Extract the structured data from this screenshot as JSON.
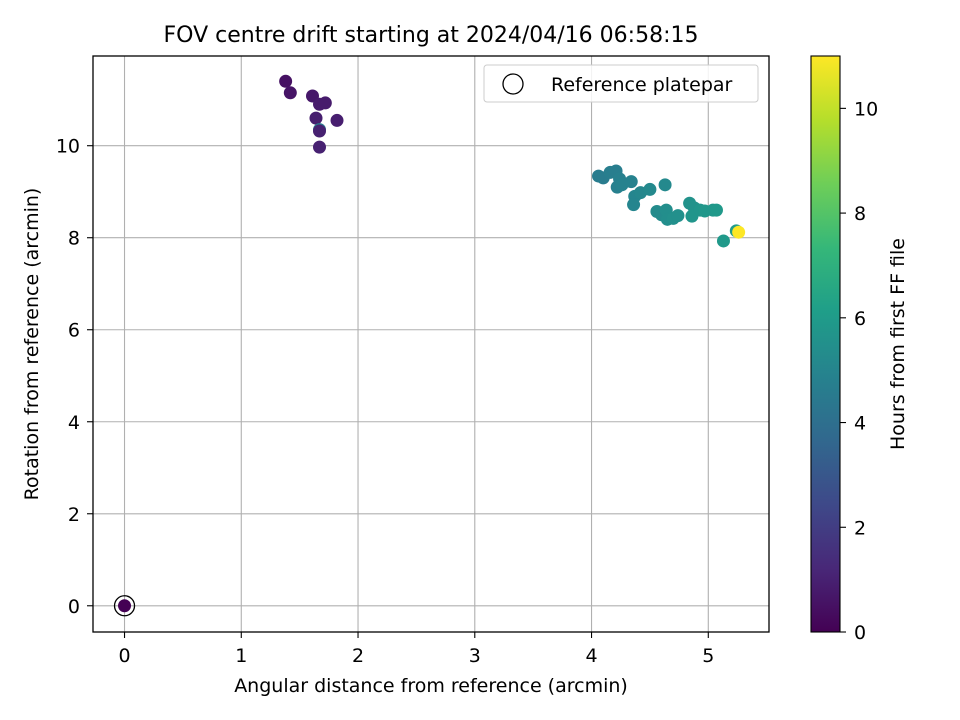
{
  "chart_data": {
    "type": "scatter",
    "title": "FOV centre drift starting at 2024/04/16 06:58:15",
    "xlabel": "Angular distance from reference (arcmin)",
    "ylabel": "Rotation from reference (arcmin)",
    "xlim": [
      -0.27,
      5.52
    ],
    "ylim": [
      -0.57,
      11.95
    ],
    "xticks": [
      0,
      1,
      2,
      3,
      4,
      5
    ],
    "yticks": [
      0,
      2,
      4,
      6,
      8,
      10
    ],
    "grid": true,
    "legend": {
      "position": "top-right",
      "entries": [
        "Reference platepar"
      ]
    },
    "colorbar": {
      "label": "Hours from first FF file",
      "range": [
        0,
        11
      ],
      "ticks": [
        0,
        2,
        4,
        6,
        8,
        10
      ],
      "colormap": "viridis"
    },
    "reference_point": {
      "x": 0,
      "y": 0
    },
    "points": [
      {
        "x": 0,
        "y": 0,
        "c": 0
      },
      {
        "x": 1.38,
        "y": 11.4,
        "c": 0.5
      },
      {
        "x": 1.42,
        "y": 11.15,
        "c": 0.6
      },
      {
        "x": 1.61,
        "y": 11.08,
        "c": 0.7
      },
      {
        "x": 1.67,
        "y": 10.9,
        "c": 0.8
      },
      {
        "x": 1.72,
        "y": 10.93,
        "c": 0.8
      },
      {
        "x": 1.64,
        "y": 10.6,
        "c": 0.9
      },
      {
        "x": 1.82,
        "y": 10.55,
        "c": 0.9
      },
      {
        "x": 1.67,
        "y": 10.35,
        "c": 4.4
      },
      {
        "x": 1.67,
        "y": 10.32,
        "c": 1.0
      },
      {
        "x": 1.67,
        "y": 9.97,
        "c": 1.0
      },
      {
        "x": 4.06,
        "y": 9.34,
        "c": 4.6
      },
      {
        "x": 4.1,
        "y": 9.3,
        "c": 4.6
      },
      {
        "x": 4.16,
        "y": 9.42,
        "c": 4.7
      },
      {
        "x": 4.21,
        "y": 9.45,
        "c": 4.7
      },
      {
        "x": 4.24,
        "y": 9.28,
        "c": 4.8
      },
      {
        "x": 4.22,
        "y": 9.1,
        "c": 4.8
      },
      {
        "x": 4.26,
        "y": 9.15,
        "c": 4.9
      },
      {
        "x": 4.34,
        "y": 9.22,
        "c": 4.9
      },
      {
        "x": 4.37,
        "y": 8.9,
        "c": 5.0
      },
      {
        "x": 4.36,
        "y": 8.72,
        "c": 5.0
      },
      {
        "x": 4.42,
        "y": 8.98,
        "c": 5.1
      },
      {
        "x": 4.5,
        "y": 9.05,
        "c": 5.2
      },
      {
        "x": 4.63,
        "y": 9.15,
        "c": 5.2
      },
      {
        "x": 4.56,
        "y": 8.57,
        "c": 5.3
      },
      {
        "x": 4.6,
        "y": 8.5,
        "c": 5.3
      },
      {
        "x": 4.64,
        "y": 8.6,
        "c": 5.4
      },
      {
        "x": 4.65,
        "y": 8.4,
        "c": 5.4
      },
      {
        "x": 4.7,
        "y": 8.42,
        "c": 5.5
      },
      {
        "x": 4.74,
        "y": 8.48,
        "c": 5.5
      },
      {
        "x": 4.84,
        "y": 8.75,
        "c": 5.6
      },
      {
        "x": 4.88,
        "y": 8.65,
        "c": 5.6
      },
      {
        "x": 4.86,
        "y": 8.47,
        "c": 5.7
      },
      {
        "x": 4.93,
        "y": 8.6,
        "c": 5.7
      },
      {
        "x": 4.97,
        "y": 8.58,
        "c": 5.8
      },
      {
        "x": 5.04,
        "y": 8.6,
        "c": 5.8
      },
      {
        "x": 5.07,
        "y": 8.6,
        "c": 5.9
      },
      {
        "x": 5.13,
        "y": 7.93,
        "c": 5.9
      },
      {
        "x": 5.24,
        "y": 8.15,
        "c": 6.0
      },
      {
        "x": 5.26,
        "y": 8.12,
        "c": 11.0
      }
    ]
  }
}
